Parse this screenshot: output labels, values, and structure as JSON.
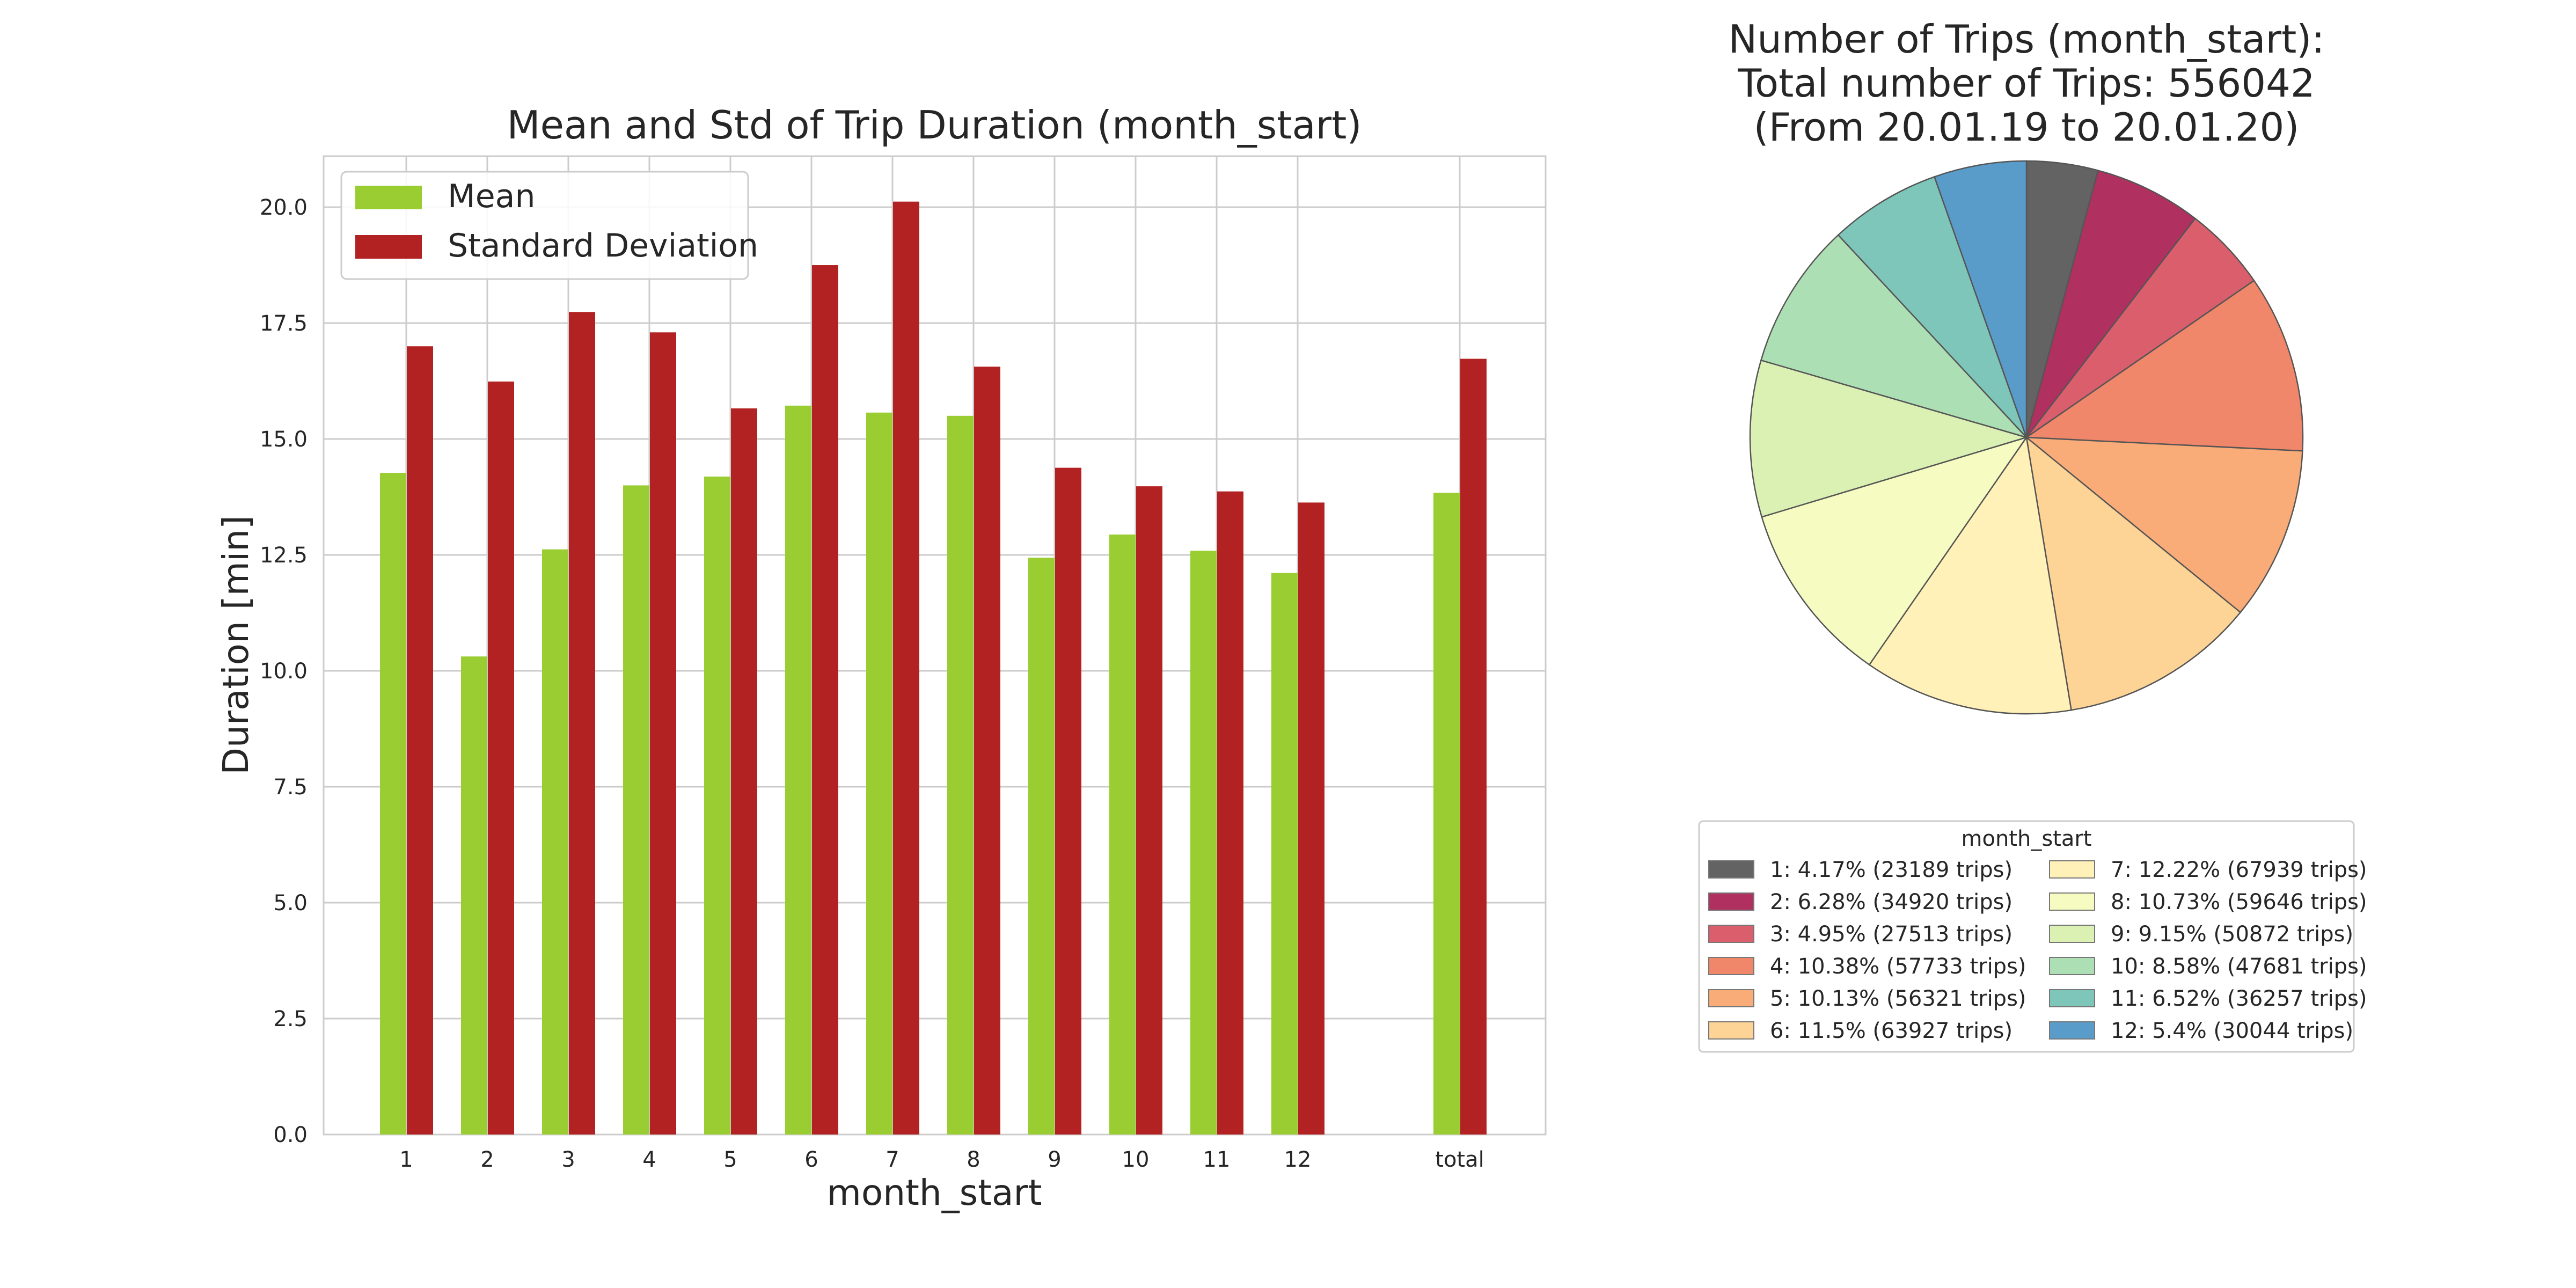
{
  "chart_data": [
    {
      "type": "bar",
      "title": "Mean and Std of Trip Duration (month_start)",
      "xlabel": "month_start",
      "ylabel": "Duration [min]",
      "ylim": [
        0,
        21.1
      ],
      "yticks": [
        "0.0",
        "2.5",
        "5.0",
        "7.5",
        "10.0",
        "12.5",
        "15.0",
        "17.5",
        "20.0"
      ],
      "grid": true,
      "legend_position": "top-left",
      "categories": [
        "1",
        "2",
        "3",
        "4",
        "5",
        "6",
        "7",
        "8",
        "9",
        "10",
        "11",
        "12",
        "total"
      ],
      "series": [
        {
          "name": "Mean",
          "color": "#9acd32",
          "values": [
            14.27,
            10.31,
            12.62,
            14.0,
            14.19,
            15.72,
            15.57,
            15.5,
            12.44,
            12.94,
            12.59,
            12.11,
            13.84
          ]
        },
        {
          "name": "Standard Deviation",
          "color": "#b22222",
          "values": [
            17.0,
            16.24,
            17.74,
            17.3,
            15.66,
            18.75,
            20.12,
            16.56,
            14.38,
            13.98,
            13.87,
            13.63,
            16.73
          ]
        }
      ]
    },
    {
      "type": "pie",
      "title_lines": [
        "Number of Trips (month_start):",
        "Total number of Trips: 556042",
        "(From 20.01.19 to 20.01.20)"
      ],
      "legend_title": "month_start",
      "legend_position": "bottom",
      "slices": [
        {
          "label": "1: 4.17% (23189 trips)",
          "value": 23189,
          "color": "#636363"
        },
        {
          "label": "2: 6.28% (34920 trips)",
          "value": 34920,
          "color": "#b03060"
        },
        {
          "label": "3: 4.95% (27513 trips)",
          "value": 27513,
          "color": "#da5e6c"
        },
        {
          "label": "4: 10.38% (57733 trips)",
          "value": 57733,
          "color": "#f0866a"
        },
        {
          "label": "5: 10.13% (56321 trips)",
          "value": 56321,
          "color": "#f9ac78"
        },
        {
          "label": "6: 11.5% (63927 trips)",
          "value": 63927,
          "color": "#fdd495"
        },
        {
          "label": "7: 12.22% (67939 trips)",
          "value": 67939,
          "color": "#fff1b8"
        },
        {
          "label": "8: 10.73% (59646 trips)",
          "value": 59646,
          "color": "#f6fbc1"
        },
        {
          "label": "9: 9.15% (50872 trips)",
          "value": 50872,
          "color": "#dbf0b3"
        },
        {
          "label": "10: 8.58% (47681 trips)",
          "value": 47681,
          "color": "#addfb5"
        },
        {
          "label": "11: 6.52% (36257 trips)",
          "value": 36257,
          "color": "#7ec6b9"
        },
        {
          "label": "12: 5.4% (30044 trips)",
          "value": 30044,
          "color": "#5a9cc9"
        }
      ]
    }
  ]
}
